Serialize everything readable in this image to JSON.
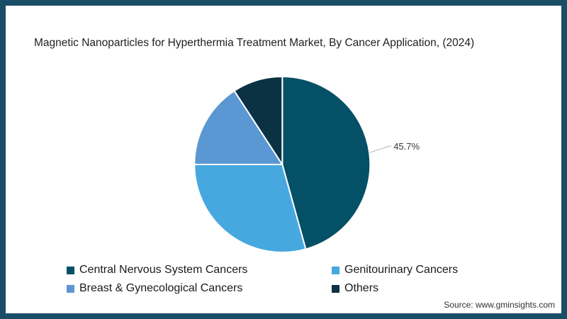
{
  "chart_data": {
    "type": "pie",
    "title": "Magnetic Nanoparticles for Hyperthermia Treatment Market, By Cancer Application,  (2024)",
    "unit": "%",
    "start_position": "12-o'clock",
    "direction": "clockwise",
    "legend_position": "bottom",
    "legend_columns": 2,
    "visible_data_labels": [
      "45.7%"
    ],
    "slices": [
      {
        "label": "Central Nervous System Cancers",
        "value": 45.7,
        "color": "#045066",
        "data_label": "45.7%"
      },
      {
        "label": "Genitourinary Cancers",
        "value": 29.3,
        "color": "#47a8e0"
      },
      {
        "label": "Breast & Gynecological Cancers",
        "value": 15.8,
        "color": "#5b97d3"
      },
      {
        "label": "Others",
        "value": 9.2,
        "color": "#0b3242"
      }
    ]
  },
  "colors": {
    "frame_border": "#1a4d66",
    "slice_divider": "#ffffff",
    "leader_line": "#b3b3b3"
  },
  "source_text": "Source: www.gminsights.com"
}
